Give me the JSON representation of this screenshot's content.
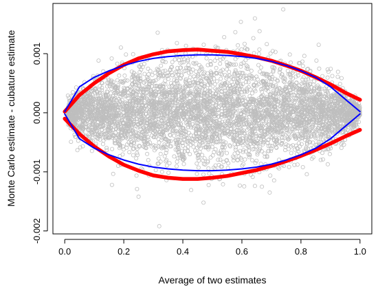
{
  "chart_data": {
    "type": "scatter",
    "xlabel": "Average of two estimates",
    "ylabel": "Monte Carlo estimate - cubature estimate",
    "xlim": [
      -0.04,
      1.04
    ],
    "ylim": [
      -0.00205,
      0.00185
    ],
    "x_ticks": [
      0.0,
      0.2,
      0.4,
      0.6,
      0.8,
      1.0
    ],
    "x_tick_labels": [
      "0.0",
      "0.2",
      "0.4",
      "0.6",
      "0.8",
      "1.0"
    ],
    "y_ticks": [
      -0.002,
      -0.001,
      0.0,
      0.001
    ],
    "y_tick_labels": [
      "-0.002",
      "-0.001",
      "0.000",
      "0.001"
    ],
    "grid": false,
    "points": {
      "color": "#bebebe",
      "marker": "open-circle",
      "count": 5000,
      "spread_sd_peak": 0.00042,
      "outliers": [
        [
          0.74,
          0.00175
        ],
        [
          0.32,
          -0.00192
        ],
        [
          0.47,
          -0.00152
        ],
        [
          0.25,
          -0.00142
        ],
        [
          0.54,
          0.00128
        ],
        [
          0.66,
          0.00138
        ],
        [
          0.38,
          0.00118
        ],
        [
          0.86,
          0.00115
        ],
        [
          0.16,
          -0.00122
        ]
      ]
    },
    "series": [
      {
        "color": "#ff0000",
        "style": "thick",
        "x": [
          0.0,
          0.05,
          0.1,
          0.15,
          0.2,
          0.25,
          0.3,
          0.35,
          0.4,
          0.45,
          0.5,
          0.55,
          0.6,
          0.65,
          0.7,
          0.75,
          0.8,
          0.85,
          0.9,
          0.95,
          1.0
        ],
        "upper": [
          2e-05,
          0.0003,
          0.0005,
          0.00067,
          0.00081,
          0.00092,
          0.00099,
          0.00104,
          0.00106,
          0.00107,
          0.00105,
          0.00103,
          0.00099,
          0.00094,
          0.00088,
          0.0008,
          0.00071,
          0.0006,
          0.00048,
          0.00034,
          0.00022
        ],
        "lower": [
          -0.0001,
          -0.00036,
          -0.00057,
          -0.00074,
          -0.00088,
          -0.00098,
          -0.00106,
          -0.0011,
          -0.00112,
          -0.00112,
          -0.0011,
          -0.00107,
          -0.00102,
          -0.00097,
          -0.0009,
          -0.00082,
          -0.00073,
          -0.00063,
          -0.00052,
          -0.0004,
          -0.00029
        ]
      },
      {
        "color": "#0000ff",
        "style": "thin",
        "x": [
          0.0,
          0.05,
          0.1,
          0.15,
          0.2,
          0.25,
          0.3,
          0.35,
          0.4,
          0.45,
          0.5,
          0.55,
          0.6,
          0.65,
          0.7,
          0.75,
          0.8,
          0.85,
          0.9,
          0.95,
          1.0
        ],
        "upper": [
          2e-05,
          0.00044,
          0.0006,
          0.00071,
          0.0008,
          0.00087,
          0.00092,
          0.00095,
          0.00097,
          0.00098,
          0.00098,
          0.00097,
          0.00095,
          0.00092,
          0.00087,
          0.0008,
          0.00071,
          0.0006,
          0.00044,
          0.00023,
          2e-05
        ],
        "lower": [
          -2e-05,
          -0.00044,
          -0.0006,
          -0.00071,
          -0.0008,
          -0.00087,
          -0.00092,
          -0.00095,
          -0.00097,
          -0.00098,
          -0.00098,
          -0.00097,
          -0.00095,
          -0.00092,
          -0.00087,
          -0.0008,
          -0.00071,
          -0.0006,
          -0.00044,
          -0.00023,
          -2e-05
        ]
      }
    ]
  }
}
